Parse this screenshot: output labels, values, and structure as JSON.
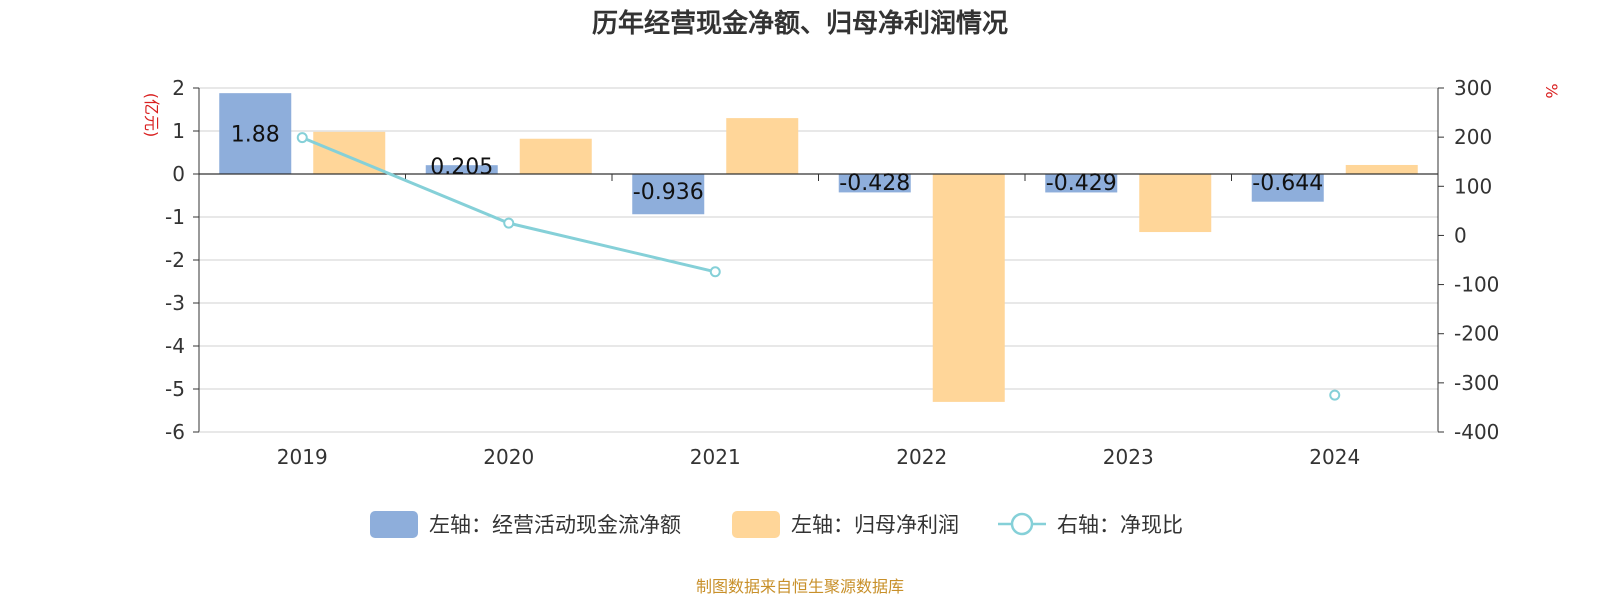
{
  "chart_data": {
    "type": "bar",
    "title": "历年经营现金净额、归母净利润情况",
    "categories": [
      "2019",
      "2020",
      "2021",
      "2022",
      "2023",
      "2024"
    ],
    "left_axis": {
      "unit": "(亿元)",
      "ylim": [
        -6,
        2
      ],
      "ticks": [
        "2",
        "1",
        "0",
        "-1",
        "-2",
        "-3",
        "-4",
        "-5",
        "-6"
      ]
    },
    "right_axis": {
      "unit": "%",
      "ylim": [
        -400,
        300
      ],
      "ticks": [
        "300",
        "200",
        "100",
        "0",
        "-100",
        "-200",
        "-300",
        "-400"
      ]
    },
    "series": [
      {
        "name": "左轴：经营活动现金流净额",
        "type": "bar",
        "axis": "left",
        "color": "#8eaedb",
        "values": [
          1.88,
          0.205,
          -0.936,
          -0.428,
          -0.429,
          -0.644
        ],
        "labels": [
          "1.88",
          "0.205",
          "-0.936",
          "-0.428",
          "-0.429",
          "-0.644"
        ]
      },
      {
        "name": "左轴：归母净利润",
        "type": "bar",
        "axis": "left",
        "color": "#ffd699",
        "values": [
          0.98,
          0.82,
          1.3,
          -5.3,
          -1.35,
          0.21
        ]
      },
      {
        "name": "右轴：净现比",
        "type": "line",
        "axis": "right",
        "color": "#85d0d8",
        "values": [
          199,
          25,
          -74,
          null,
          null,
          -325
        ]
      }
    ],
    "grid": true,
    "legend": "bottom"
  },
  "source": "制图数据来自恒生聚源数据库"
}
